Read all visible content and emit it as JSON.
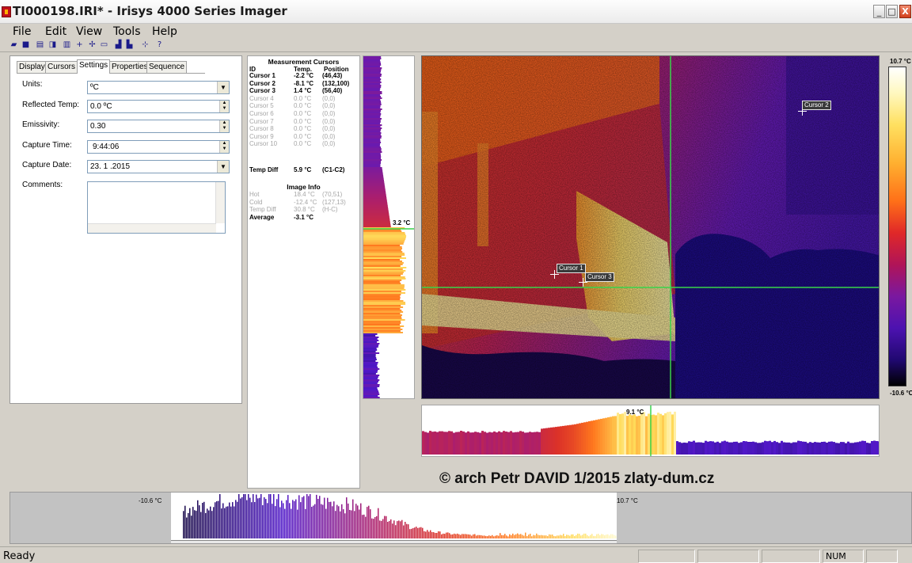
{
  "window": {
    "title": "TI000198.IRI* - Irisys 4000 Series Imager"
  },
  "menu": [
    "File",
    "Edit",
    "View",
    "Tools",
    "Help"
  ],
  "toolbar": [
    "open-icon",
    "save-icon",
    "print-icon",
    "print-setup-icon",
    "report-icon",
    "add-cursor-icon",
    "move-cursor-icon",
    "area-box-icon",
    "histogram-icon",
    "chart-icon",
    "crosshair-icon",
    "help-icon"
  ],
  "settings": {
    "tabs": [
      "Display",
      "Cursors",
      "Settings",
      "Properties",
      "Sequence"
    ],
    "active_tab": "Settings",
    "units_label": "Units:",
    "units_value": "ºC",
    "reflected_label": "Reflected Temp:",
    "reflected_value": "0.0 ºC",
    "emissivity_label": "Emissivity:",
    "emissivity_value": "0.30",
    "capture_time_label": "Capture Time:",
    "capture_time_value": "9:44:06",
    "capture_date_label": "Capture Date:",
    "capture_date_value": "23. 1 .2015",
    "comments_label": "Comments:",
    "comments_value": ""
  },
  "measurements": {
    "title": "Measurement Cursors",
    "columns": [
      "ID",
      "Temp.",
      "Position"
    ],
    "cursors": [
      {
        "id": "Cursor 1",
        "temp": "-2.2 °C",
        "pos": "(46,43)",
        "active": true
      },
      {
        "id": "Cursor 2",
        "temp": "-8.1 °C",
        "pos": "(132,100)",
        "active": true
      },
      {
        "id": "Cursor 3",
        "temp": "1.4 °C",
        "pos": "(56,40)",
        "active": true
      },
      {
        "id": "Cursor 4",
        "temp": "0.0 °C",
        "pos": "(0,0)",
        "active": false
      },
      {
        "id": "Cursor 5",
        "temp": "0.0 °C",
        "pos": "(0,0)",
        "active": false
      },
      {
        "id": "Cursor 6",
        "temp": "0.0 °C",
        "pos": "(0,0)",
        "active": false
      },
      {
        "id": "Cursor 7",
        "temp": "0.0 °C",
        "pos": "(0,0)",
        "active": false
      },
      {
        "id": "Cursor 8",
        "temp": "0.0 °C",
        "pos": "(0,0)",
        "active": false
      },
      {
        "id": "Cursor 9",
        "temp": "0.0 °C",
        "pos": "(0,0)",
        "active": false
      },
      {
        "id": "Cursor 10",
        "temp": "0.0 °C",
        "pos": "(0,0)",
        "active": false
      }
    ],
    "temp_diff": {
      "label": "Temp Diff",
      "temp": "5.9 °C",
      "pos": "(C1-C2)"
    },
    "info_title": "Image Info",
    "info": [
      {
        "id": "Hot",
        "temp": "18.4 °C",
        "pos": "(70,51)",
        "active": false
      },
      {
        "id": "Cold",
        "temp": "-12.4 °C",
        "pos": "(127,13)",
        "active": false
      },
      {
        "id": "Temp Diff",
        "temp": "30.8 °C",
        "pos": "(H-C)",
        "active": false
      },
      {
        "id": "Average",
        "temp": "-3.1 °C",
        "pos": "",
        "active": true
      }
    ]
  },
  "thermal": {
    "scale_max": "10.7 °C",
    "scale_min": "-10.6 °C",
    "vprofile_value": "3.2 °C",
    "hprofile_value": "9.1 °C",
    "image_cursor_labels": [
      "Cursor 1",
      "Cursor 2",
      "Cursor 3"
    ]
  },
  "watermark": "© arch Petr DAVID 1/2015 zlaty-dum.cz",
  "histogram": {
    "min_label": "-10.6 °C",
    "max_label": "10.7 °C"
  },
  "status": {
    "text": "Ready",
    "num": "NUM"
  },
  "colors": {
    "hot": "#fff6a0",
    "warm": "#ff7a1a",
    "mid": "#c8245a",
    "cool": "#5e1cc8",
    "cold": "#10063a",
    "crosshair": "#39d44a"
  }
}
